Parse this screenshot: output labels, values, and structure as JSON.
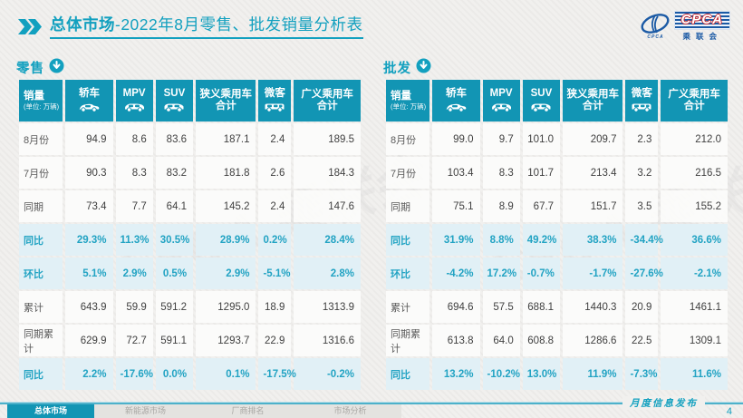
{
  "header": {
    "title_bold": "总体市场",
    "title_rest": "-2022年8月零售、批发销量分析表",
    "logo": {
      "cpca": "CPCA",
      "cn": "乘联会",
      "small": "CPCA"
    }
  },
  "watermark": "CPCA 乘联会",
  "colors": {
    "teal_header": "#1295b4",
    "teal_title": "#12a0bf",
    "highlight_row_bg": "#e1f0f6",
    "highlight_text": "#22a3c3",
    "page_bg": "#f1f0ee",
    "logo_blue": "#1b5aa5",
    "logo_red": "#c2242b"
  },
  "unit_note": "(单位: 万辆)",
  "tables": [
    {
      "name": "零售",
      "corner_label": "销量",
      "columns": [
        {
          "label": "轿车",
          "icon": "sedan-icon"
        },
        {
          "label": "MPV",
          "icon": "mpv-icon"
        },
        {
          "label": "SUV",
          "icon": "suv-icon"
        },
        {
          "label": "狭义乘用车",
          "label2": "合计",
          "icon": null
        },
        {
          "label": "微客",
          "icon": "microvan-icon"
        },
        {
          "label": "广义乘用车",
          "label2": "合计",
          "icon": null
        }
      ],
      "rows": [
        {
          "label": "8月份",
          "highlight": false,
          "values": [
            "94.9",
            "8.6",
            "83.6",
            "187.1",
            "2.4",
            "189.5"
          ]
        },
        {
          "label": "7月份",
          "highlight": false,
          "values": [
            "90.3",
            "8.3",
            "83.2",
            "181.8",
            "2.6",
            "184.3"
          ]
        },
        {
          "label": "同期",
          "highlight": false,
          "values": [
            "73.4",
            "7.7",
            "64.1",
            "145.2",
            "2.4",
            "147.6"
          ]
        },
        {
          "label": "同比",
          "highlight": true,
          "values": [
            "29.3%",
            "11.3%",
            "30.5%",
            "28.9%",
            "0.2%",
            "28.4%"
          ]
        },
        {
          "label": "环比",
          "highlight": true,
          "values": [
            "5.1%",
            "2.9%",
            "0.5%",
            "2.9%",
            "-5.1%",
            "2.8%"
          ]
        },
        {
          "label": "累计",
          "highlight": false,
          "values": [
            "643.9",
            "59.9",
            "591.2",
            "1295.0",
            "18.9",
            "1313.9"
          ]
        },
        {
          "label": "同期累计",
          "highlight": false,
          "values": [
            "629.9",
            "72.7",
            "591.1",
            "1293.7",
            "22.9",
            "1316.6"
          ]
        },
        {
          "label": "同比",
          "highlight": true,
          "values": [
            "2.2%",
            "-17.6%",
            "0.0%",
            "0.1%",
            "-17.5%",
            "-0.2%"
          ]
        }
      ]
    },
    {
      "name": "批发",
      "corner_label": "销量",
      "columns": [
        {
          "label": "轿车",
          "icon": "sedan-icon"
        },
        {
          "label": "MPV",
          "icon": "mpv-icon"
        },
        {
          "label": "SUV",
          "icon": "suv-icon"
        },
        {
          "label": "狭义乘用车",
          "label2": "合计",
          "icon": null
        },
        {
          "label": "微客",
          "icon": "microvan-icon"
        },
        {
          "label": "广义乘用车",
          "label2": "合计",
          "icon": null
        }
      ],
      "rows": [
        {
          "label": "8月份",
          "highlight": false,
          "values": [
            "99.0",
            "9.7",
            "101.0",
            "209.7",
            "2.3",
            "212.0"
          ]
        },
        {
          "label": "7月份",
          "highlight": false,
          "values": [
            "103.4",
            "8.3",
            "101.7",
            "213.4",
            "3.2",
            "216.5"
          ]
        },
        {
          "label": "同期",
          "highlight": false,
          "values": [
            "75.1",
            "8.9",
            "67.7",
            "151.7",
            "3.5",
            "155.2"
          ]
        },
        {
          "label": "同比",
          "highlight": true,
          "values": [
            "31.9%",
            "8.8%",
            "49.2%",
            "38.3%",
            "-34.4%",
            "36.6%"
          ]
        },
        {
          "label": "环比",
          "highlight": true,
          "values": [
            "-4.2%",
            "17.2%",
            "-0.7%",
            "-1.7%",
            "-27.6%",
            "-2.1%"
          ]
        },
        {
          "label": "累计",
          "highlight": false,
          "values": [
            "694.6",
            "57.5",
            "688.1",
            "1440.3",
            "20.9",
            "1461.1"
          ]
        },
        {
          "label": "同期累计",
          "highlight": false,
          "values": [
            "613.8",
            "64.0",
            "608.8",
            "1286.6",
            "22.5",
            "1309.1"
          ]
        },
        {
          "label": "同比",
          "highlight": true,
          "values": [
            "13.2%",
            "-10.2%",
            "13.0%",
            "11.9%",
            "-7.3%",
            "11.6%"
          ]
        }
      ]
    }
  ],
  "footer": {
    "tabs": [
      {
        "label": "总体市场",
        "active": true
      },
      {
        "label": "新能源市场",
        "active": false
      },
      {
        "label": "厂商排名",
        "active": false
      },
      {
        "label": "市场分析",
        "active": false
      }
    ],
    "publication": "月度信息发布",
    "page": "4"
  }
}
